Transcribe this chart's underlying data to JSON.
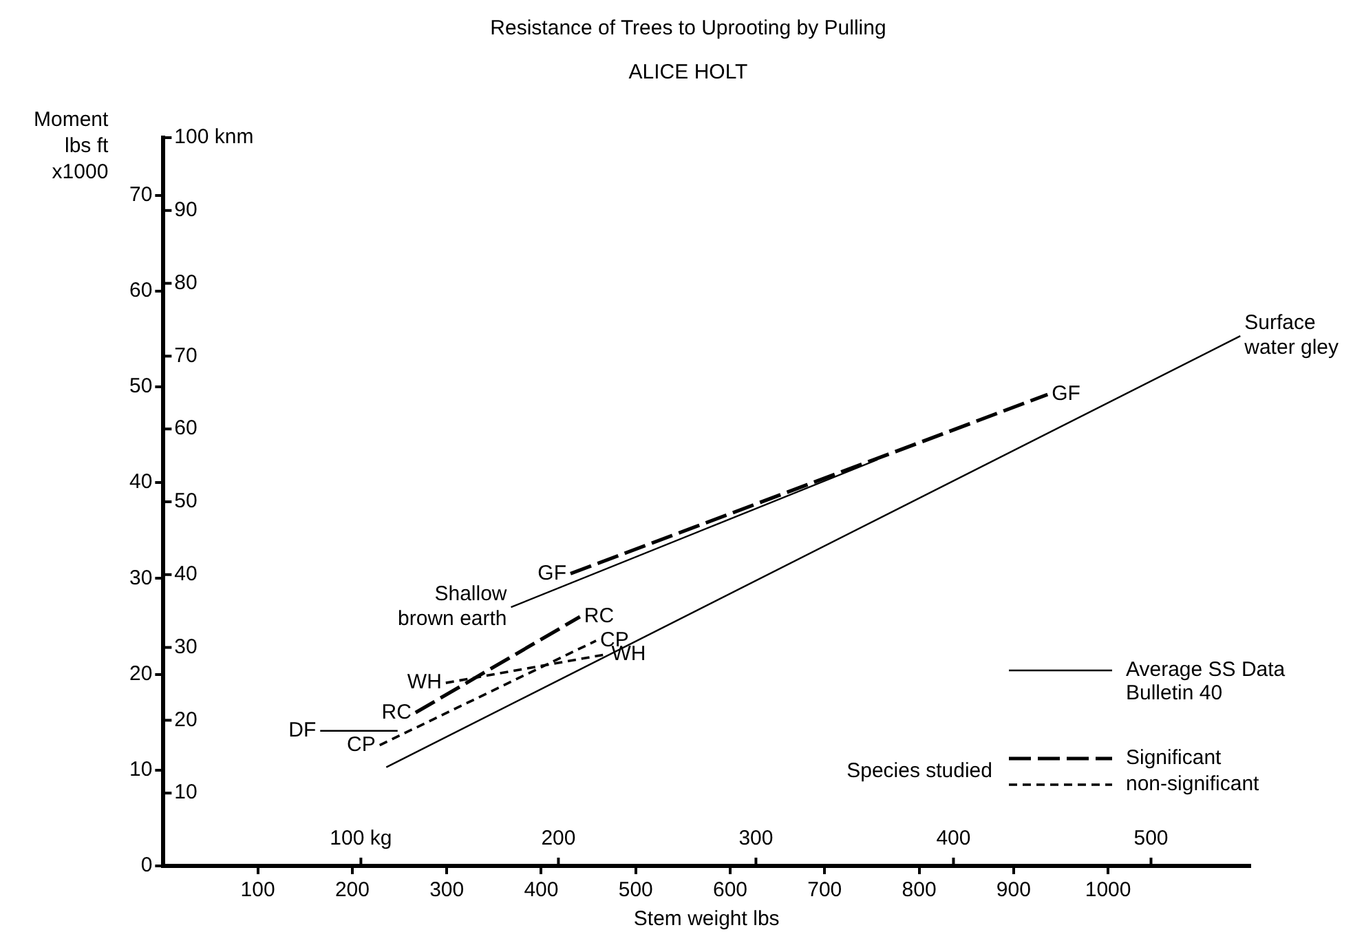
{
  "chart_data": {
    "type": "line",
    "title": "Resistance of Trees to Uprooting by Pulling",
    "subtitle": "ALICE HOLT",
    "xlabel": "Stem weight lbs",
    "ylabel": "Moment lbs ft x1000",
    "xlim": [
      0,
      1150
    ],
    "xticks": [
      100,
      200,
      300,
      400,
      500,
      600,
      700,
      800,
      900,
      1000
    ],
    "ylim": [
      0,
      76
    ],
    "yticks": [
      0,
      10,
      20,
      30,
      40,
      50,
      60,
      70
    ],
    "x2lim": [
      0,
      550
    ],
    "x2ticks": [
      {
        "value": 100,
        "label": "100 kg"
      },
      200,
      300,
      400,
      500
    ],
    "y2lim": [
      0,
      100
    ],
    "y2ticks": [
      10,
      20,
      30,
      40,
      50,
      60,
      70,
      80,
      90,
      {
        "value": 100,
        "label": "100 knm"
      }
    ],
    "series": [
      {
        "name": "Average SS Data Bulletin 40",
        "color": "#000000",
        "line_style": "solid",
        "x": [
          236,
          1140
        ],
        "values": [
          10.3,
          55.3
        ]
      },
      {
        "color": "#000000",
        "line_style": "solid",
        "x": [
          368,
          756
        ],
        "values": [
          27.0,
          42.4
        ]
      },
      {
        "color": "#000000",
        "line_style": "solid",
        "x": [
          166,
          248
        ],
        "values": [
          14.1,
          14.1
        ]
      },
      {
        "color": "#000000",
        "line_style": "dashed",
        "x": [
          431,
          936
        ],
        "values": [
          30.5,
          49.2
        ]
      },
      {
        "name": "Significant",
        "color": "#000000",
        "line_style": "dashed",
        "x": [
          267,
          441
        ],
        "values": [
          16.0,
          26.0
        ]
      },
      {
        "name": "non-significant",
        "color": "#000000",
        "line_style": "dotted",
        "x": [
          229,
          458
        ],
        "values": [
          12.6,
          23.5
        ]
      },
      {
        "color": "#000000",
        "line_style": "dotted",
        "x": [
          299,
          470
        ],
        "values": [
          19.1,
          22.1
        ]
      }
    ],
    "annotations": [
      {
        "text": "Surface water gley",
        "x": 1140,
        "y": 55.3
      },
      {
        "text": "Shallow brown earth",
        "x": 368,
        "y": 27.0
      },
      {
        "text": "DF",
        "x": 166,
        "y": 14.1
      },
      {
        "text": "GF",
        "x": 431,
        "y": 30.5
      },
      {
        "text": "GF",
        "x": 936,
        "y": 49.2
      },
      {
        "text": "RC",
        "x": 267,
        "y": 16.0
      },
      {
        "text": "RC",
        "x": 441,
        "y": 26.0
      },
      {
        "text": "CP",
        "x": 229,
        "y": 12.6
      },
      {
        "text": "CP",
        "x": 458,
        "y": 23.5
      },
      {
        "text": "WH",
        "x": 299,
        "y": 19.1
      },
      {
        "text": "WH",
        "x": 470,
        "y": 22.1
      },
      "Species studied"
    ],
    "legend": "bottom right",
    "grid": false,
    "marker": "none"
  }
}
